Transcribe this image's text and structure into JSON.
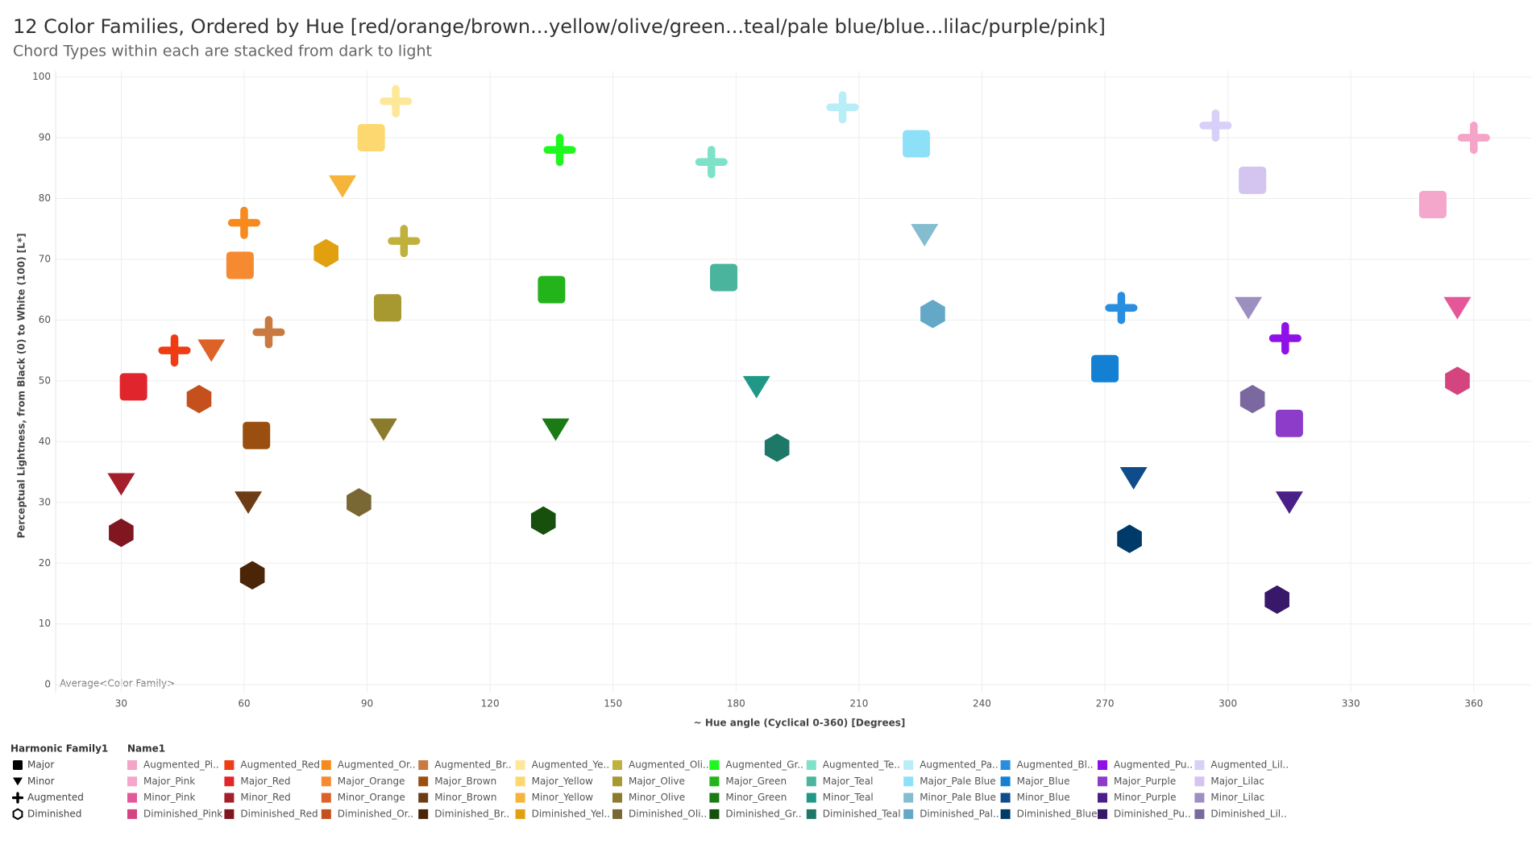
{
  "chart_data": {
    "type": "scatter",
    "title": "12 Color Families, Ordered by Hue [red/orange/brown...yellow/olive/green...teal/pale blue/blue...lilac/purple/pink]",
    "subtitle": "Chord Types within each are stacked from dark to light",
    "x_label": "~ Hue angle (Cyclical 0-360) [Degrees]",
    "y_label": "Perceptual Lightness, from Black (0) to White (100) [L*]",
    "annotation": "Average<Color Family>",
    "xlim": [
      14,
      374
    ],
    "xticks": [
      30,
      60,
      90,
      120,
      150,
      180,
      210,
      240,
      270,
      300,
      330,
      360
    ],
    "ylim": [
      -1.3,
      101
    ],
    "yticks": [
      0,
      10,
      20,
      30,
      40,
      50,
      60,
      70,
      80,
      90,
      100
    ],
    "grid": true,
    "shape_legend": {
      "title": "Harmonic Family1",
      "items": [
        {
          "label": "Major",
          "shape": "square"
        },
        {
          "label": "Minor",
          "shape": "triangle"
        },
        {
          "label": "Augmented",
          "shape": "plus"
        },
        {
          "label": "Diminished",
          "shape": "hexagon"
        }
      ]
    },
    "legend_title": "Name1",
    "series": [
      {
        "name": "Augmented_Pi..",
        "color": "#f5a3c7",
        "shape": "plus",
        "x": [
          360
        ],
        "values": [
          90
        ]
      },
      {
        "name": "Major_Pink",
        "color": "#f4a6cb",
        "shape": "square",
        "x": [
          350
        ],
        "values": [
          79
        ]
      },
      {
        "name": "Minor_Pink",
        "color": "#e4589a",
        "shape": "triangle",
        "x": [
          356
        ],
        "values": [
          62
        ]
      },
      {
        "name": "Diminished_Pink",
        "color": "#d4447f",
        "shape": "hexagon",
        "x": [
          356
        ],
        "values": [
          50
        ]
      },
      {
        "name": "Augmented_Red",
        "color": "#f03c14",
        "shape": "plus",
        "x": [
          43
        ],
        "values": [
          55
        ]
      },
      {
        "name": "Major_Red",
        "color": "#e0262c",
        "shape": "square",
        "x": [
          33
        ],
        "values": [
          49
        ]
      },
      {
        "name": "Minor_Red",
        "color": "#a31f2c",
        "shape": "triangle",
        "x": [
          30
        ],
        "values": [
          33
        ]
      },
      {
        "name": "Diminished_Red",
        "color": "#7f1620",
        "shape": "hexagon",
        "x": [
          30
        ],
        "values": [
          25
        ]
      },
      {
        "name": "Augmented_Or..",
        "color": "#f68a1e",
        "shape": "plus",
        "x": [
          60
        ],
        "values": [
          76
        ]
      },
      {
        "name": "Major_Orange",
        "color": "#f68a30",
        "shape": "square",
        "x": [
          59
        ],
        "values": [
          69
        ]
      },
      {
        "name": "Minor_Orange",
        "color": "#dd6228",
        "shape": "triangle",
        "x": [
          52
        ],
        "values": [
          55
        ]
      },
      {
        "name": "Diminished_Or..",
        "color": "#c4501e",
        "shape": "hexagon",
        "x": [
          49
        ],
        "values": [
          47
        ]
      },
      {
        "name": "Augmented_Br..",
        "color": "#c97a40",
        "shape": "plus",
        "x": [
          66
        ],
        "values": [
          58
        ]
      },
      {
        "name": "Major_Brown",
        "color": "#9a4e10",
        "shape": "square",
        "x": [
          63
        ],
        "values": [
          41
        ]
      },
      {
        "name": "Minor_Brown",
        "color": "#6e3c14",
        "shape": "triangle",
        "x": [
          61
        ],
        "values": [
          30
        ]
      },
      {
        "name": "Diminished_Br..",
        "color": "#4a2508",
        "shape": "hexagon",
        "x": [
          62
        ],
        "values": [
          18
        ]
      },
      {
        "name": "Augmented_Ye..",
        "color": "#fde89a",
        "shape": "plus",
        "x": [
          97
        ],
        "values": [
          96
        ]
      },
      {
        "name": "Major_Yellow",
        "color": "#fdd870",
        "shape": "square",
        "x": [
          91
        ],
        "values": [
          90
        ]
      },
      {
        "name": "Minor_Yellow",
        "color": "#f5b43a",
        "shape": "triangle",
        "x": [
          84
        ],
        "values": [
          82
        ]
      },
      {
        "name": "Diminished_Yel..",
        "color": "#e0a010",
        "shape": "hexagon",
        "x": [
          80
        ],
        "values": [
          71
        ]
      },
      {
        "name": "Augmented_Oli..",
        "color": "#c0b03c",
        "shape": "plus",
        "x": [
          99
        ],
        "values": [
          73
        ]
      },
      {
        "name": "Major_Olive",
        "color": "#a89830",
        "shape": "square",
        "x": [
          95
        ],
        "values": [
          62
        ]
      },
      {
        "name": "Minor_Olive",
        "color": "#8a7c2c",
        "shape": "triangle",
        "x": [
          94
        ],
        "values": [
          42
        ]
      },
      {
        "name": "Diminished_Oli..",
        "color": "#7a6834",
        "shape": "hexagon",
        "x": [
          88
        ],
        "values": [
          30
        ]
      },
      {
        "name": "Augmented_Gr..",
        "color": "#1ef81e",
        "shape": "plus",
        "x": [
          137
        ],
        "values": [
          88
        ]
      },
      {
        "name": "Major_Green",
        "color": "#22b41a",
        "shape": "square",
        "x": [
          135
        ],
        "values": [
          65
        ]
      },
      {
        "name": "Minor_Green",
        "color": "#1a7a14",
        "shape": "triangle",
        "x": [
          136
        ],
        "values": [
          42
        ]
      },
      {
        "name": "Diminished_Gr..",
        "color": "#174f0c",
        "shape": "hexagon",
        "x": [
          133
        ],
        "values": [
          27
        ]
      },
      {
        "name": "Augmented_Te..",
        "color": "#7ee2c8",
        "shape": "plus",
        "x": [
          174
        ],
        "values": [
          86
        ]
      },
      {
        "name": "Major_Teal",
        "color": "#4ab59c",
        "shape": "square",
        "x": [
          177
        ],
        "values": [
          67
        ]
      },
      {
        "name": "Minor_Teal",
        "color": "#209888",
        "shape": "triangle",
        "x": [
          185
        ],
        "values": [
          49
        ]
      },
      {
        "name": "Diminished_Teal",
        "color": "#1e7868",
        "shape": "hexagon",
        "x": [
          190
        ],
        "values": [
          39
        ]
      },
      {
        "name": "Augmented_Pa..",
        "color": "#b8eef8",
        "shape": "plus",
        "x": [
          206
        ],
        "values": [
          95
        ]
      },
      {
        "name": "Major_Pale Blue",
        "color": "#8ee0f8",
        "shape": "square",
        "x": [
          224
        ],
        "values": [
          89
        ]
      },
      {
        "name": "Minor_Pale Blue",
        "color": "#84bcd0",
        "shape": "triangle",
        "x": [
          226
        ],
        "values": [
          74
        ]
      },
      {
        "name": "Diminished_Pal..",
        "color": "#64a8c8",
        "shape": "hexagon",
        "x": [
          228
        ],
        "values": [
          61
        ]
      },
      {
        "name": "Augmented_Bl..",
        "color": "#2a8ee0",
        "shape": "plus",
        "x": [
          274
        ],
        "values": [
          62
        ]
      },
      {
        "name": "Major_Blue",
        "color": "#1480d4",
        "shape": "square",
        "x": [
          270
        ],
        "values": [
          52
        ]
      },
      {
        "name": "Minor_Blue",
        "color": "#0e4c8c",
        "shape": "triangle",
        "x": [
          277
        ],
        "values": [
          34
        ]
      },
      {
        "name": "Diminished_Blue",
        "color": "#003a68",
        "shape": "hexagon",
        "x": [
          276
        ],
        "values": [
          24
        ]
      },
      {
        "name": "Augmented_Pu..",
        "color": "#9010e8",
        "shape": "plus",
        "x": [
          314
        ],
        "values": [
          57
        ]
      },
      {
        "name": "Major_Purple",
        "color": "#8c3cc8",
        "shape": "square",
        "x": [
          315
        ],
        "values": [
          43
        ]
      },
      {
        "name": "Minor_Purple",
        "color": "#4a2088",
        "shape": "triangle",
        "x": [
          315
        ],
        "values": [
          30
        ]
      },
      {
        "name": "Diminished_Pu..",
        "color": "#381868",
        "shape": "hexagon",
        "x": [
          312
        ],
        "values": [
          14
        ]
      },
      {
        "name": "Augmented_Lil..",
        "color": "#d8d0f8",
        "shape": "plus",
        "x": [
          297
        ],
        "values": [
          92
        ]
      },
      {
        "name": "Major_Lilac",
        "color": "#d4c4f0",
        "shape": "square",
        "x": [
          306
        ],
        "values": [
          83
        ]
      },
      {
        "name": "Minor_Lilac",
        "color": "#9c90c0",
        "shape": "triangle",
        "x": [
          305
        ],
        "values": [
          62
        ]
      },
      {
        "name": "Diminished_Lil..",
        "color": "#7c68a0",
        "shape": "hexagon",
        "x": [
          306
        ],
        "values": [
          47
        ]
      }
    ]
  }
}
